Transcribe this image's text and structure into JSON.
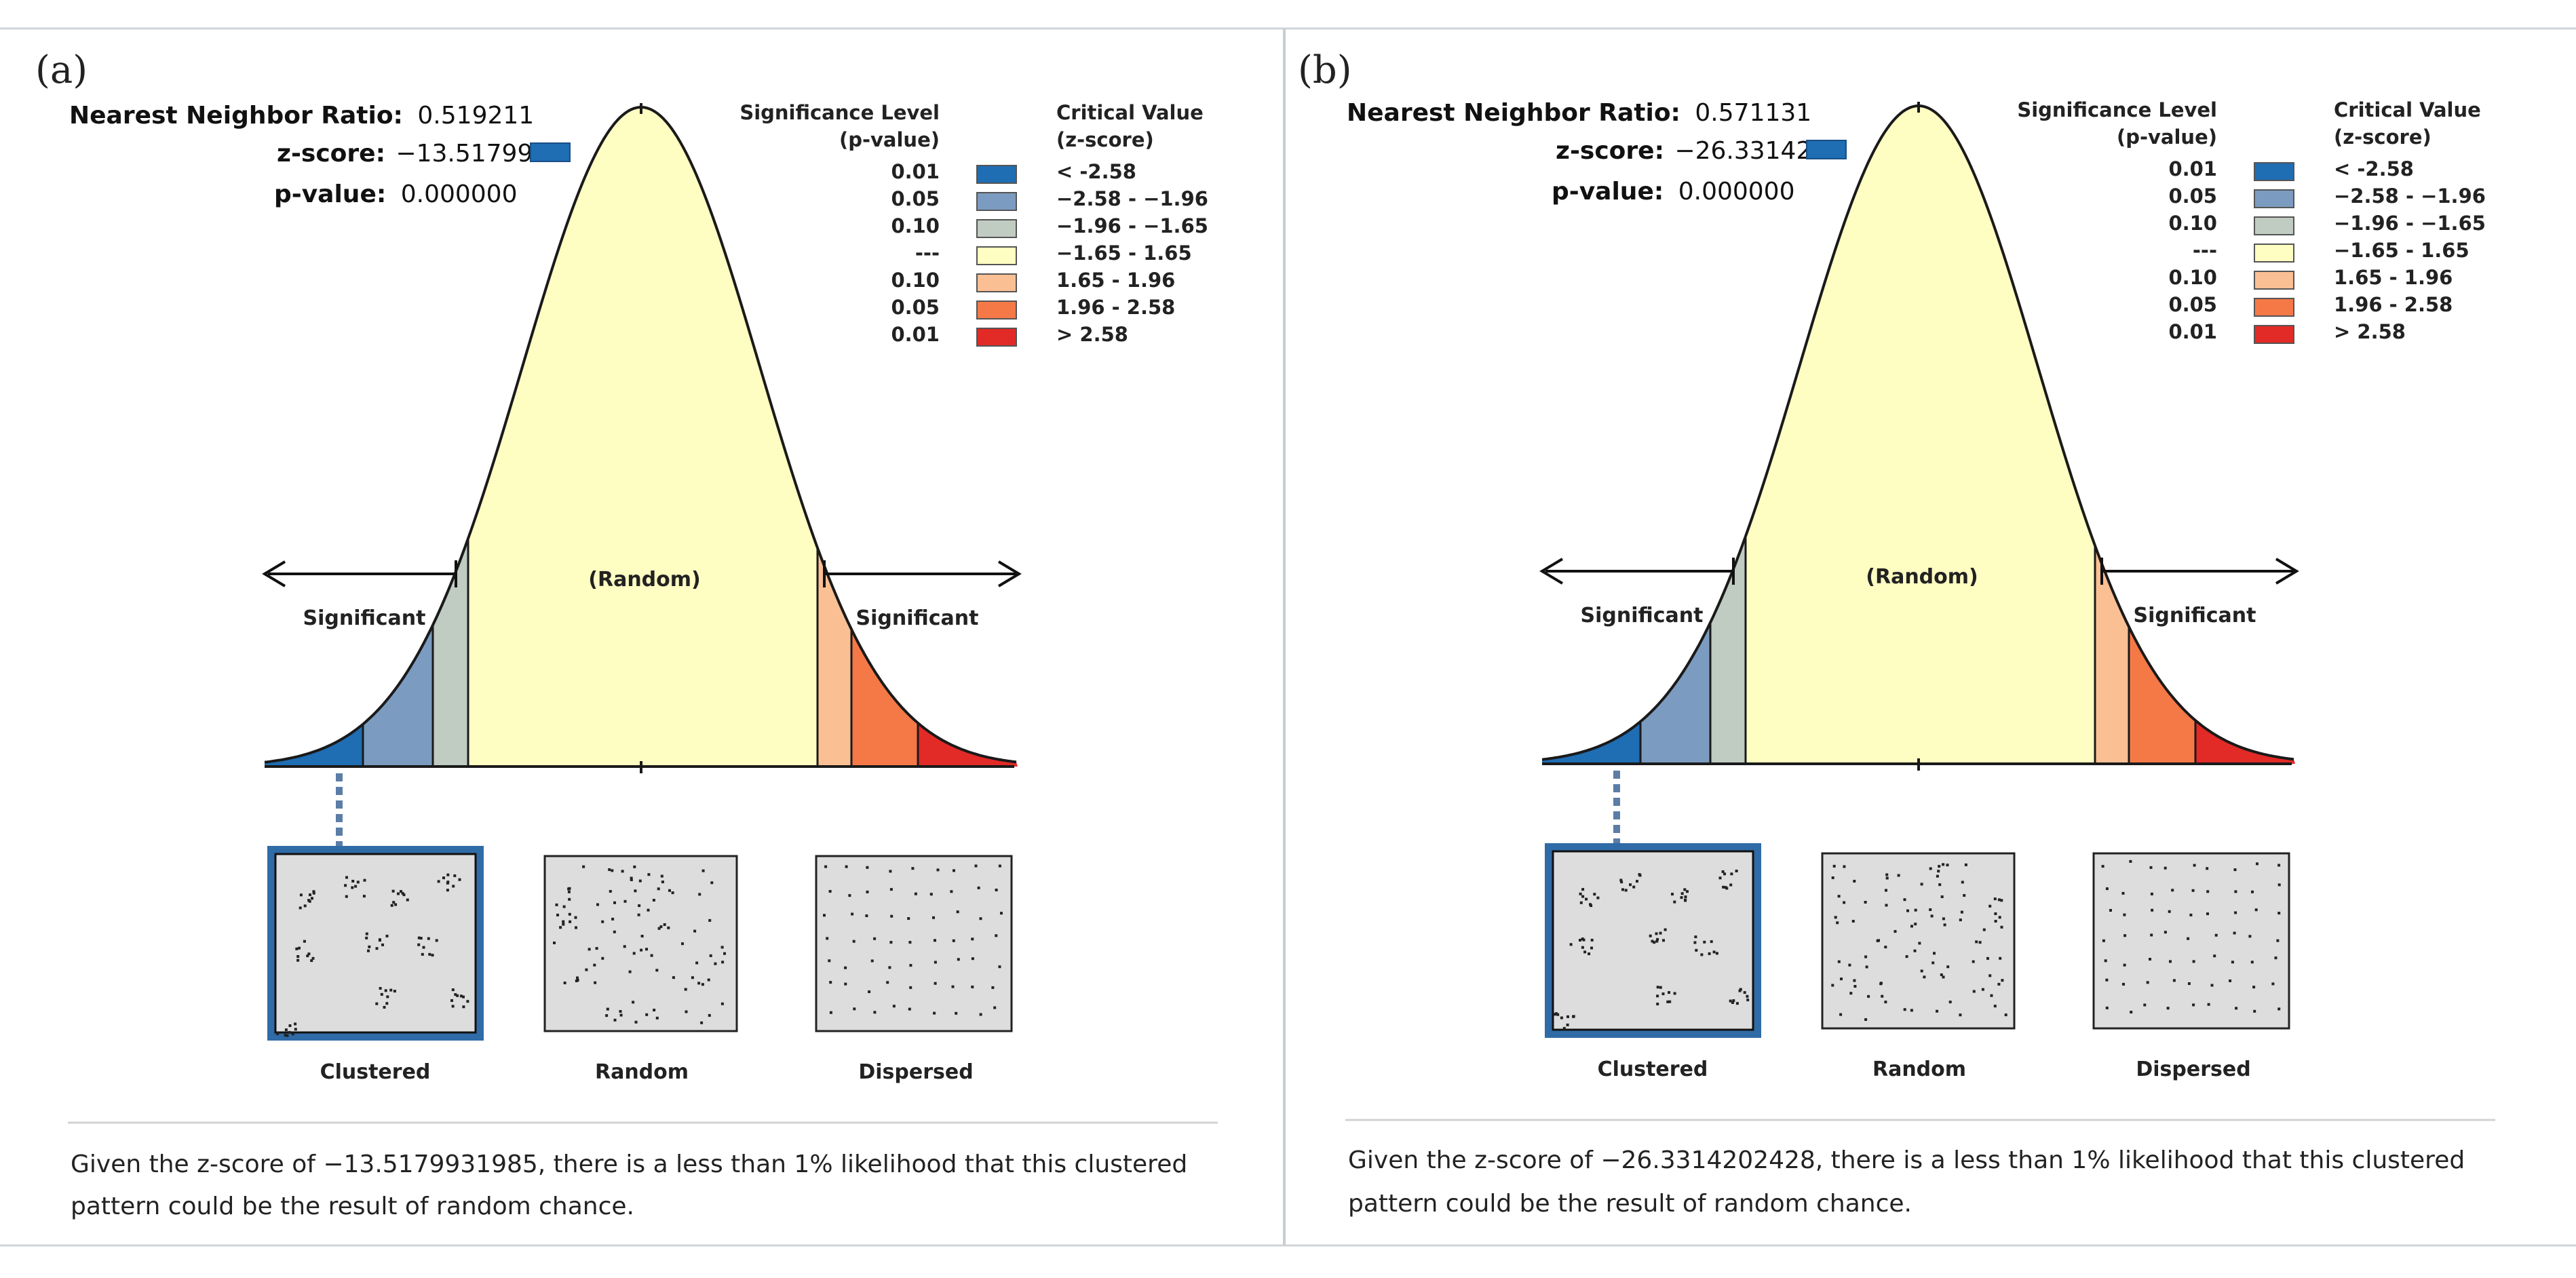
{
  "legend_colors": {
    "blue_dark": "#1f6db3",
    "blue_mid": "#7b9cc0",
    "gray_green": "#c0cbc2",
    "yellow": "#fefdc2",
    "orange_light": "#fbbf94",
    "orange": "#f57947",
    "red": "#e22a26"
  },
  "panels": [
    {
      "panel_label": "(a)",
      "nn_ratio_label": "Nearest Neighbor Ratio:",
      "nn_ratio_value": "0.519211",
      "z_score_label": "z-score:",
      "z_score_value": "−13.517993",
      "p_value_label": "p-value:",
      "p_value_value": "0.000000",
      "legend": {
        "sig_header_1": "Significance Level",
        "sig_header_2": "(p-value)",
        "crit_header_1": "Critical Value",
        "crit_header_2": "(z-score)",
        "rows": [
          {
            "p": "0.01",
            "z": "< -2.58",
            "color": "#1f6db3"
          },
          {
            "p": "0.05",
            "z": "−2.58 - −1.96",
            "color": "#7b9cc0"
          },
          {
            "p": "0.10",
            "z": "−1.96 - −1.65",
            "color": "#c0cbc2"
          },
          {
            "p": "---",
            "z": "−1.65 - 1.65",
            "color": "#fefdc2"
          },
          {
            "p": "0.10",
            "z": "1.65 - 1.96",
            "color": "#fbbf94"
          },
          {
            "p": "0.05",
            "z": "1.96 - 2.58",
            "color": "#f57947"
          },
          {
            "p": "0.01",
            "z": "> 2.58",
            "color": "#e22a26"
          }
        ]
      },
      "random_label": "(Random)",
      "significant_left": "Significant",
      "significant_right": "Significant",
      "pattern_labels": [
        "Clustered",
        "Random",
        "Dispersed"
      ],
      "conclusion_line1": "Given the z-score of −13.5179931985, there is a less than 1% likelihood that this clustered",
      "conclusion_line2": "pattern could be the result of random chance."
    },
    {
      "panel_label": "(b)",
      "nn_ratio_label": "Nearest Neighbor Ratio:",
      "nn_ratio_value": "0.571131",
      "z_score_label": "z-score:",
      "z_score_value": "−26.331420",
      "p_value_label": "p-value:",
      "p_value_value": "0.000000",
      "legend": {
        "sig_header_1": "Significance Level",
        "sig_header_2": "(p-value)",
        "crit_header_1": "Critical Value",
        "crit_header_2": "(z-score)",
        "rows": [
          {
            "p": "0.01",
            "z": "< -2.58",
            "color": "#1f6db3"
          },
          {
            "p": "0.05",
            "z": "−2.58 - −1.96",
            "color": "#7b9cc0"
          },
          {
            "p": "0.10",
            "z": "−1.96 - −1.65",
            "color": "#c0cbc2"
          },
          {
            "p": "---",
            "z": "−1.65 - 1.65",
            "color": "#fefdc2"
          },
          {
            "p": "0.10",
            "z": "1.65 - 1.96",
            "color": "#fbbf94"
          },
          {
            "p": "0.05",
            "z": "1.96 - 2.58",
            "color": "#f57947"
          },
          {
            "p": "0.01",
            "z": "> 2.58",
            "color": "#e22a26"
          }
        ]
      },
      "random_label": "(Random)",
      "significant_left": "Significant",
      "significant_right": "Significant",
      "pattern_labels": [
        "Clustered",
        "Random",
        "Dispersed"
      ],
      "conclusion_line1": "Given the z-score of −26.3314202428, there is a less than 1% likelihood that this clustered",
      "conclusion_line2": "pattern could be the result of random chance."
    }
  ]
}
